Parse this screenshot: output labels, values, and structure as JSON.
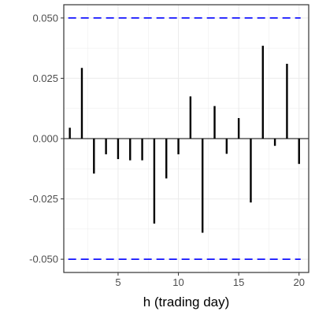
{
  "chart_data": {
    "type": "bar",
    "xlabel": "h (trading day)",
    "ylabel": "",
    "title": "",
    "x": [
      1,
      2,
      3,
      4,
      5,
      6,
      7,
      8,
      9,
      10,
      11,
      12,
      13,
      14,
      15,
      16,
      17,
      18,
      19,
      20
    ],
    "values": [
      0.0045,
      0.0293,
      -0.0145,
      -0.0065,
      -0.0085,
      -0.009,
      -0.009,
      -0.0352,
      -0.0165,
      -0.0065,
      0.0175,
      -0.039,
      0.0135,
      -0.0063,
      0.0085,
      -0.0265,
      0.0385,
      -0.003,
      0.031,
      -0.0105
    ],
    "xlim": [
      0.5,
      20.8
    ],
    "ylim": [
      -0.0555,
      0.0555
    ],
    "x_ticks": [
      5,
      10,
      15,
      20
    ],
    "x_tick_labels": [
      "5",
      "10",
      "15",
      "20"
    ],
    "y_ticks": [
      0.05,
      0.025,
      0.0,
      -0.025,
      -0.05
    ],
    "y_tick_labels": [
      "0.050",
      "0.025",
      "0.000",
      "-0.025",
      "-0.050"
    ],
    "confidence_band": [
      -0.05,
      0.05
    ],
    "grid": true,
    "colors": {
      "bars": "#000000",
      "band": "#0000ff",
      "grid": "#ebebeb",
      "zero_line": "#000000",
      "panel_border": "#333333"
    }
  }
}
